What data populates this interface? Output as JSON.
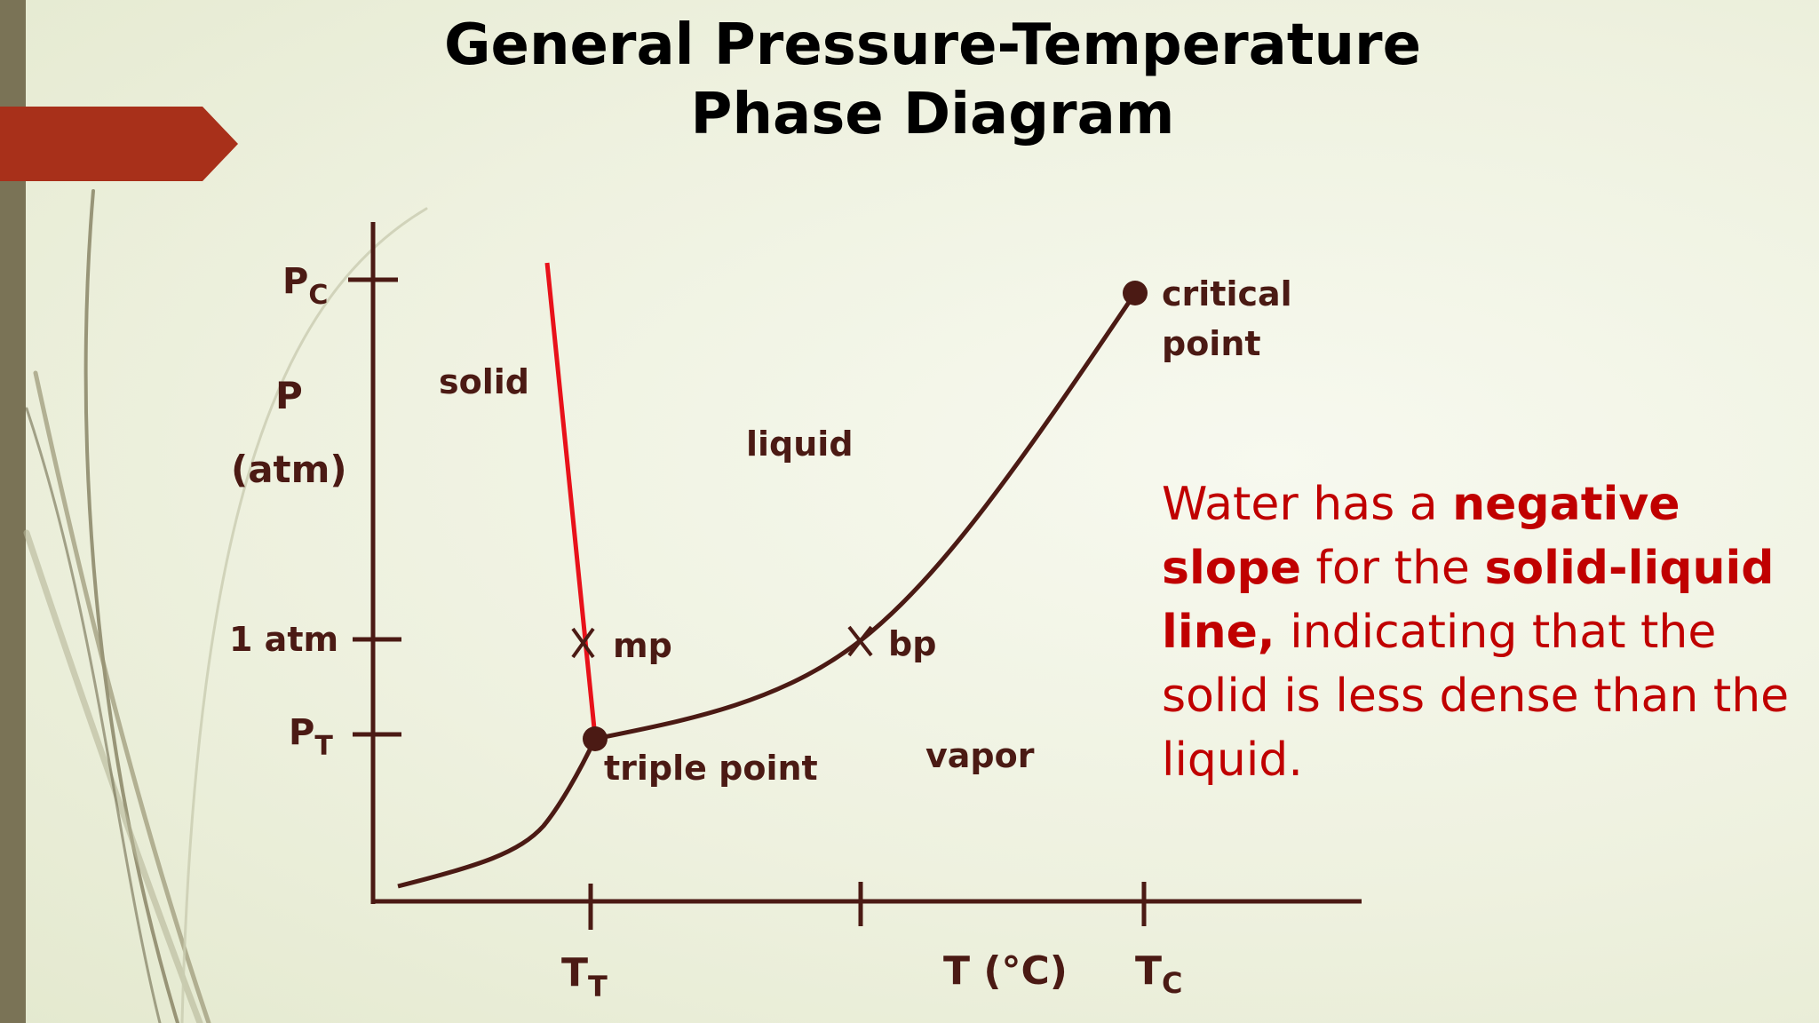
{
  "slide": {
    "title_line1": "General Pressure-Temperature",
    "title_line2": "Phase Diagram"
  },
  "colors": {
    "accent_arrow": "#a8301a",
    "curve": "#4b1a14",
    "solid_liquid_line": "#e8111a",
    "note_text": "#c00000"
  },
  "axes": {
    "y_label_line1": "P",
    "y_label_line2": "(atm)",
    "x_label": "T (°C)",
    "y_ticks": {
      "pc_main": "P",
      "pc_sub": "C",
      "one_atm": "1 atm",
      "pt_main": "P",
      "pt_sub": "T"
    },
    "x_ticks": {
      "tt_main": "T",
      "tt_sub": "T",
      "tc_main": "T",
      "tc_sub": "C"
    }
  },
  "regions": {
    "solid": "solid",
    "liquid": "liquid",
    "vapor": "vapor"
  },
  "points": {
    "mp": "mp",
    "bp": "bp",
    "triple": "triple point",
    "critical_line1": "critical",
    "critical_line2": "point"
  },
  "note": {
    "part1": "Water has a ",
    "bold1": "negative slope",
    "part2": " for the ",
    "bold2": "solid-liquid line,",
    "part3": " indicating that the solid is less dense than the liquid."
  }
}
